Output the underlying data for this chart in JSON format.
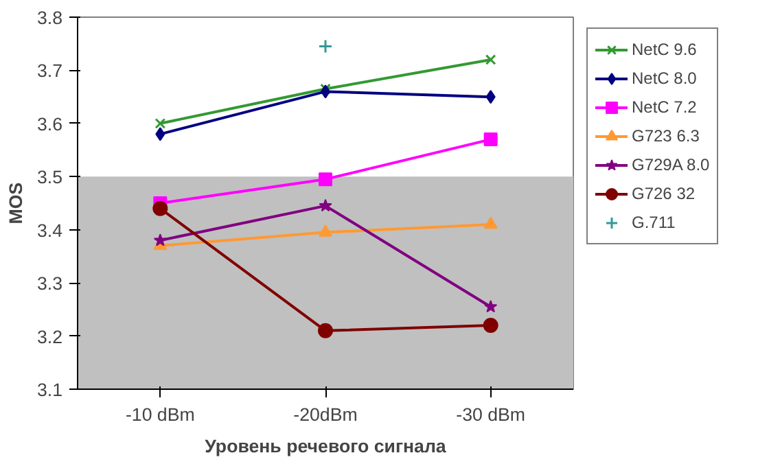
{
  "chart_data": {
    "type": "line",
    "xlabel": "Уровень речевого сигнала",
    "ylabel": "MOS",
    "categories": [
      "-10 dBm",
      "-20dBm",
      "-30 dBm"
    ],
    "ylim": [
      3.1,
      3.8
    ],
    "yticks": [
      3.1,
      3.2,
      3.3,
      3.4,
      3.5,
      3.6,
      3.7,
      3.8
    ],
    "grid": false,
    "legend": "right",
    "line_style": "solid",
    "bands": [
      {
        "axis": "y",
        "from": 3.1,
        "to": 3.5,
        "color": "#c0c0c0"
      }
    ],
    "series": [
      {
        "name": "NetC 9.6",
        "color": "#339933",
        "marker": "cross",
        "values": [
          3.6,
          3.665,
          3.72
        ]
      },
      {
        "name": "NetC 8.0",
        "color": "#000080",
        "marker": "diamond",
        "values": [
          3.58,
          3.66,
          3.65
        ]
      },
      {
        "name": "NetC 7.2",
        "color": "#ff00ff",
        "marker": "square",
        "values": [
          3.45,
          3.495,
          3.57
        ]
      },
      {
        "name": "G723 6.3",
        "color": "#ff9933",
        "marker": "triangle",
        "values": [
          3.37,
          3.395,
          3.41
        ]
      },
      {
        "name": "G729A 8.0",
        "color": "#800080",
        "marker": "star",
        "values": [
          3.38,
          3.445,
          3.255
        ]
      },
      {
        "name": "G726 32",
        "color": "#800000",
        "marker": "circle",
        "values": [
          3.44,
          3.21,
          3.22
        ]
      },
      {
        "name": "G.711",
        "color": "#339999",
        "type": "scatter",
        "marker": "cross",
        "values": [
          null,
          3.745,
          null
        ]
      }
    ]
  }
}
